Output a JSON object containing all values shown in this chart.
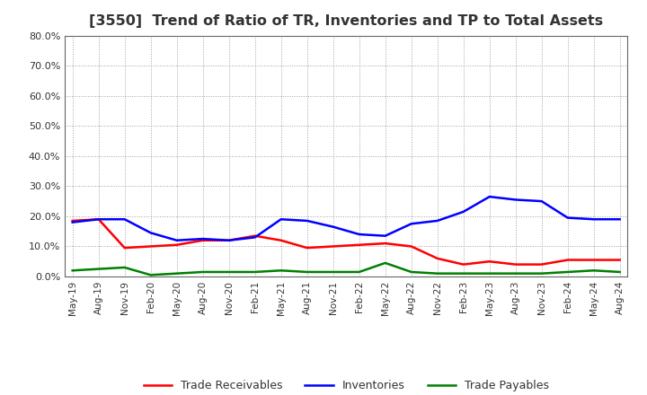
{
  "title": "[3550]  Trend of Ratio of TR, Inventories and TP to Total Assets",
  "x_labels": [
    "May-19",
    "Aug-19",
    "Nov-19",
    "Feb-20",
    "May-20",
    "Aug-20",
    "Nov-20",
    "Feb-21",
    "May-21",
    "Aug-21",
    "Nov-21",
    "Feb-22",
    "May-22",
    "Aug-22",
    "Nov-22",
    "Feb-23",
    "May-23",
    "Aug-23",
    "Nov-23",
    "Feb-24",
    "May-24",
    "Aug-24"
  ],
  "trade_receivables": [
    0.185,
    0.19,
    0.095,
    0.1,
    0.105,
    0.12,
    0.12,
    0.135,
    0.12,
    0.095,
    0.1,
    0.105,
    0.11,
    0.1,
    0.06,
    0.04,
    0.05,
    0.04,
    0.04,
    0.055,
    0.055,
    0.055
  ],
  "inventories": [
    0.18,
    0.19,
    0.19,
    0.145,
    0.12,
    0.125,
    0.12,
    0.13,
    0.19,
    0.185,
    0.165,
    0.14,
    0.135,
    0.175,
    0.185,
    0.215,
    0.265,
    0.255,
    0.25,
    0.195,
    0.19,
    0.19
  ],
  "trade_payables": [
    0.02,
    0.025,
    0.03,
    0.005,
    0.01,
    0.015,
    0.015,
    0.015,
    0.02,
    0.015,
    0.015,
    0.015,
    0.045,
    0.015,
    0.01,
    0.01,
    0.01,
    0.01,
    0.01,
    0.015,
    0.02,
    0.015
  ],
  "tr_color": "#ff0000",
  "inv_color": "#0000ff",
  "tp_color": "#008000",
  "ylim": [
    0.0,
    0.8
  ],
  "yticks": [
    0.0,
    0.1,
    0.2,
    0.3,
    0.4,
    0.5,
    0.6,
    0.7,
    0.8
  ],
  "bg_color": "#ffffff",
  "grid_color": "#888888",
  "title_color": "#333333",
  "title_fontsize": 11.5,
  "tick_color": "#333333",
  "legend_fontsize": 9
}
